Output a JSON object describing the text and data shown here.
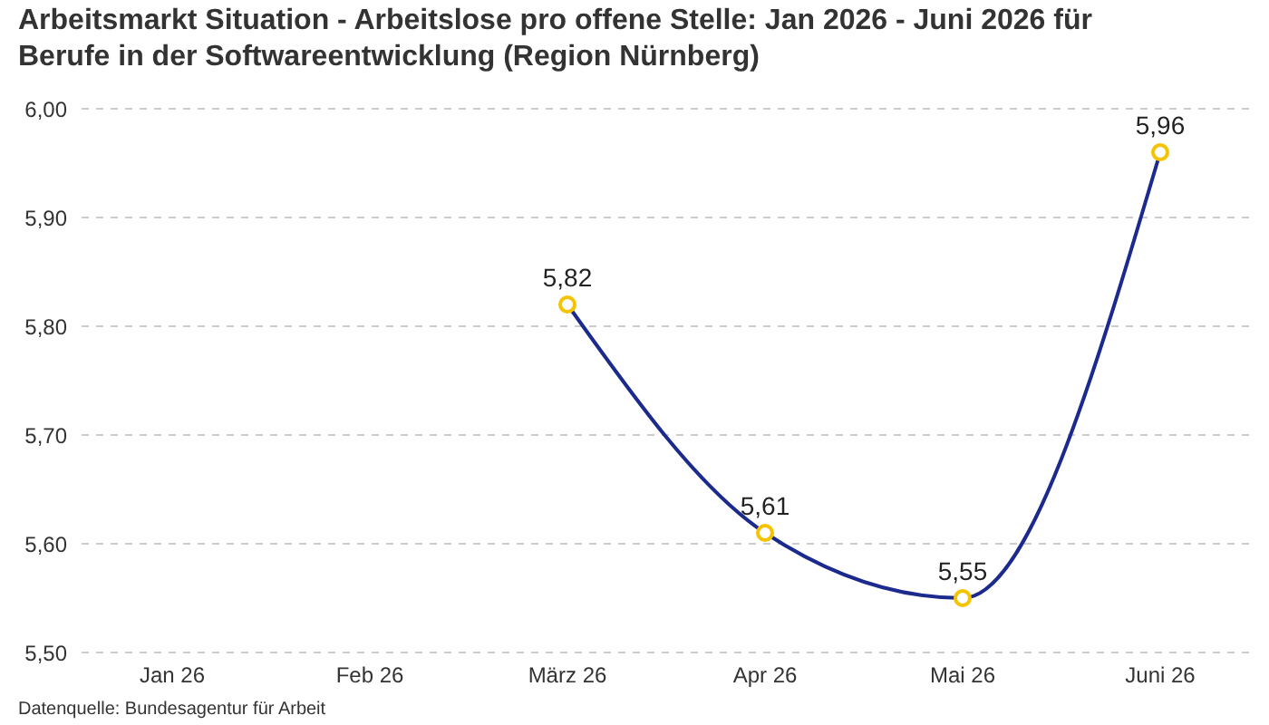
{
  "chart_data": {
    "type": "line",
    "title": "Arbeitsmarkt Situation - Arbeitslose pro offene Stelle: Jan 2026 - Juni 2026 für Berufe in der Softwareentwicklung (Region Nürnberg)",
    "categories": [
      "Jan 26",
      "Feb 26",
      "März 26",
      "Apr 26",
      "Mai 26",
      "Juni 26"
    ],
    "series": [
      {
        "color": "#1b2a8c",
        "values": [
          null,
          null,
          5.82,
          5.61,
          5.55,
          5.96
        ],
        "value_labels": [
          null,
          null,
          "5,82",
          "5,61",
          "5,55",
          "5,96"
        ]
      }
    ],
    "ylim": [
      5.5,
      6.0
    ],
    "yticks": [
      {
        "value": 5.5,
        "label": "5,50"
      },
      {
        "value": 5.6,
        "label": "5,60"
      },
      {
        "value": 5.7,
        "label": "5,70"
      },
      {
        "value": 5.8,
        "label": "5,80"
      },
      {
        "value": 5.9,
        "label": "5,90"
      },
      {
        "value": 6.0,
        "label": "6,00"
      }
    ],
    "grid": "y",
    "marker": "circle",
    "line_style": "solid",
    "annotations": [
      "Datenquelle: Bundesagentur für Arbeit"
    ]
  }
}
